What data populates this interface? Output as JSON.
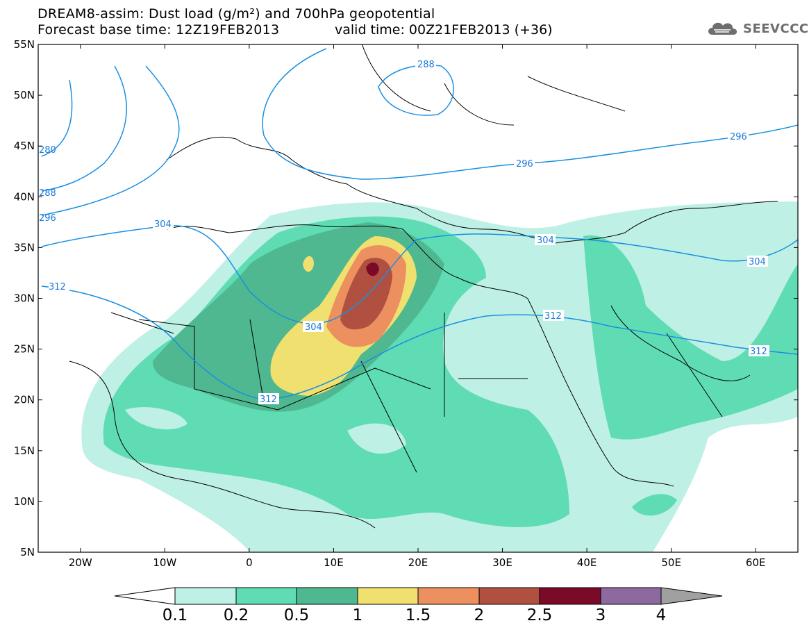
{
  "header": {
    "line1": "DREAM8-assim: Dust load (g/m²) and 700hPa geopotential",
    "line2_left": "Forecast base time: 12Z19FEB2013",
    "line2_right": "valid time: 00Z21FEB2013 (+36)"
  },
  "logo": {
    "text": "SEEVCCC",
    "icon": "cloud-icon"
  },
  "map": {
    "extent": {
      "lon_min": -25,
      "lon_max": 65,
      "lat_min": 5,
      "lat_max": 55
    },
    "lat_labels": [
      "55N",
      "50N",
      "45N",
      "40N",
      "35N",
      "30N",
      "25N",
      "20N",
      "15N",
      "10N",
      "5N"
    ],
    "lon_labels": [
      "20W",
      "10W",
      "0",
      "10E",
      "20E",
      "30E",
      "40E",
      "50E",
      "60E"
    ],
    "contour_labels": [
      "288",
      "296",
      "296",
      "304",
      "304",
      "304",
      "304",
      "312",
      "312",
      "312",
      "312",
      "280",
      "288",
      "296"
    ]
  },
  "colorbar": {
    "ticks": [
      "0.1",
      "0.2",
      "0.5",
      "1",
      "1.5",
      "2",
      "2.5",
      "3",
      "4"
    ],
    "colors": [
      "#ffffff",
      "#bff0e6",
      "#5fdcb4",
      "#4fb890",
      "#f0e070",
      "#ec9060",
      "#b05040",
      "#7a0a28",
      "#8c6aa0",
      "#a0a0a0"
    ]
  },
  "colors": {
    "contour_line": "#1a8fe0",
    "coast": "#000000"
  }
}
